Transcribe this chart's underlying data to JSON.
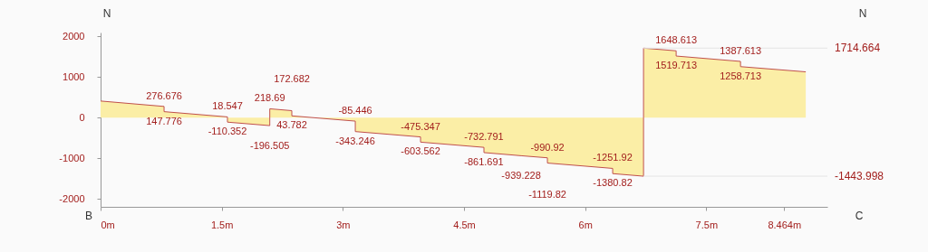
{
  "chart_data": {
    "type": "area",
    "ylabel": "N",
    "annotations": [
      "N",
      "B",
      "C"
    ],
    "x": [
      0,
      0.786,
      0.786,
      1.571,
      1.571,
      2.095,
      2.095,
      2.368,
      2.368,
      3.154,
      3.154,
      3.962,
      3.962,
      4.747,
      4.747,
      5.208,
      5.533,
      5.533,
      6.341,
      6.341,
      6.723,
      6.723,
      7.127,
      7.127,
      7.924,
      7.924,
      8.732
    ],
    "values": [
      410,
      276.676,
      147.776,
      18.547,
      -110.352,
      -196.505,
      218.69,
      172.682,
      43.782,
      -85.446,
      -343.246,
      -475.347,
      -603.562,
      -732.791,
      -861.691,
      -939.228,
      -990.92,
      -1119.82,
      -1251.92,
      -1380.82,
      -1443.998,
      1714.664,
      1648.613,
      1519.713,
      1387.613,
      1258.713,
      1130
    ],
    "value_labels": [
      null,
      "276.676",
      "147.776",
      "18.547",
      "-110.352",
      "-196.505",
      "218.69",
      "172.682",
      "43.782",
      "-85.446",
      "-343.246",
      "-475.347",
      "-603.562",
      "-732.791",
      "-861.691",
      "-939.228",
      "-990.92",
      "-1119.82",
      "-1251.92",
      "-1380.82",
      null,
      null,
      "1648.613",
      "1519.713",
      "1387.613",
      "1258.713",
      null
    ],
    "color": "#fbeea6",
    "xlim": [
      0,
      9
    ],
    "xticks": [
      {
        "value": 0,
        "label": "0m"
      },
      {
        "value": 1.5,
        "label": "1.5m"
      },
      {
        "value": 3,
        "label": "3m"
      },
      {
        "value": 4.5,
        "label": "4.5m"
      },
      {
        "value": 6,
        "label": "6m"
      },
      {
        "value": 7.5,
        "label": "7.5m"
      },
      {
        "value": 8.464,
        "label": "8.464m"
      }
    ],
    "ylim": [
      -2200,
      2100
    ],
    "yticks": [
      {
        "value": -2000,
        "label": "-2000"
      },
      {
        "value": -1000,
        "label": "-1000"
      },
      0,
      {
        "value": 1000,
        "label": "1000"
      },
      {
        "value": 2000,
        "label": "2000"
      }
    ],
    "ref_lines": [
      {
        "axis": "y",
        "value": 1714.664,
        "label": "1714.664"
      },
      {
        "axis": "y",
        "value": -1443.998,
        "label": "-1443.998"
      }
    ]
  }
}
